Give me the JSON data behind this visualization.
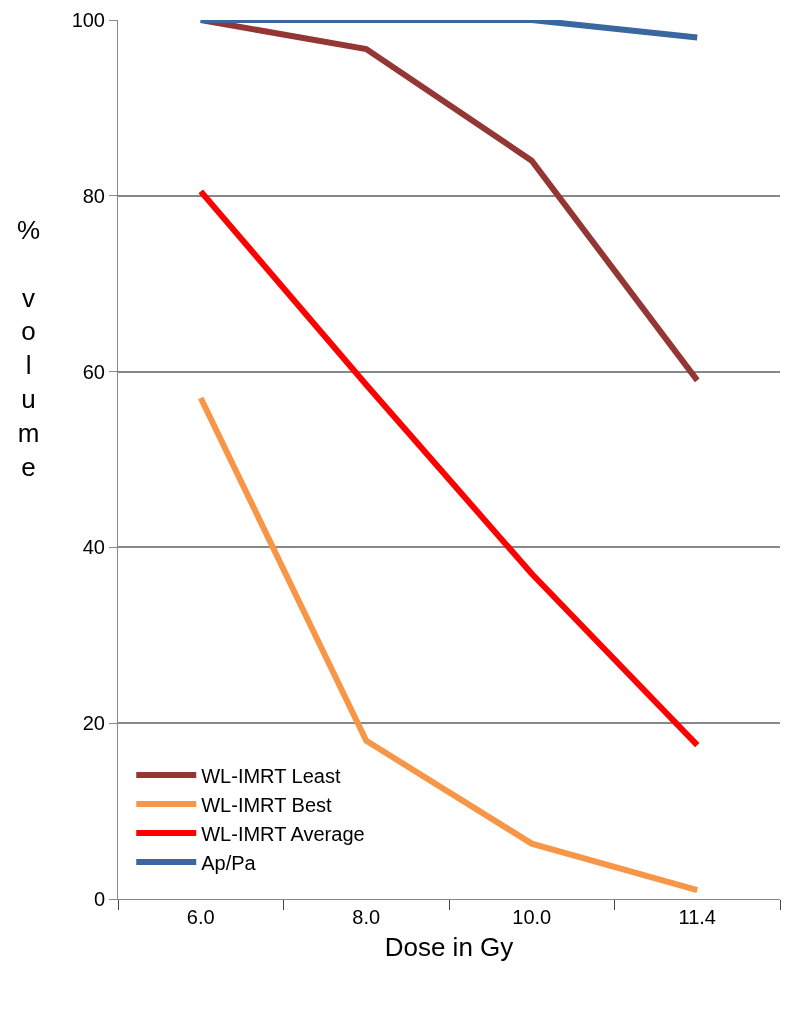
{
  "chart_data": {
    "type": "line",
    "xlabel": "Dose in Gy",
    "ylabel": "% volume",
    "categories": [
      "6.0",
      "8.0",
      "10.0",
      "11.4"
    ],
    "series": [
      {
        "name": "WL-IMRT Least",
        "color": "#943634",
        "values": [
          100,
          96.7,
          84,
          59
        ]
      },
      {
        "name": "WL-IMRT Best",
        "color": "#f79646",
        "values": [
          57,
          18,
          6.3,
          1
        ]
      },
      {
        "name": "WL-IMRT Average",
        "color": "#ff0000",
        "values": [
          80.5,
          58.5,
          37,
          17.5
        ]
      },
      {
        "name": "Ap/Pa",
        "color": "#3a67a0",
        "values": [
          100,
          100,
          100,
          98
        ]
      }
    ],
    "ylim": [
      0,
      100
    ],
    "yticks": [
      0,
      20,
      40,
      60,
      80,
      100
    ],
    "grid": "y",
    "legend": "bottom left",
    "marker": "none",
    "line_style": "solid"
  }
}
